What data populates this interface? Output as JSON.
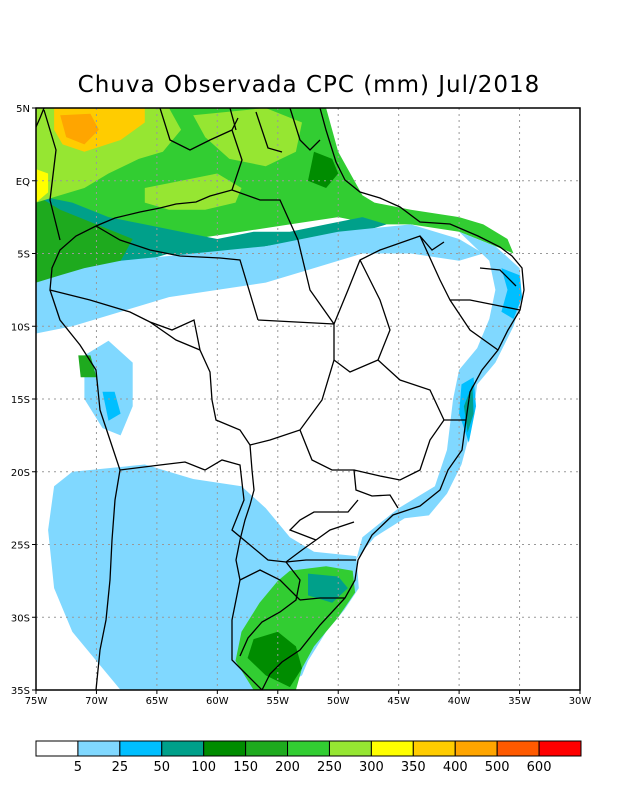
{
  "title": "Chuva Observada CPC (mm) Jul/2018",
  "lat_axis": {
    "range": [
      5,
      -35
    ],
    "ticks": [
      {
        "value": 5,
        "label": "5N"
      },
      {
        "value": 0,
        "label": "EQ"
      },
      {
        "value": -5,
        "label": "5S"
      },
      {
        "value": -10,
        "label": "10S"
      },
      {
        "value": -15,
        "label": "15S"
      },
      {
        "value": -20,
        "label": "20S"
      },
      {
        "value": -25,
        "label": "25S"
      },
      {
        "value": -30,
        "label": "30S"
      },
      {
        "value": -35,
        "label": "35S"
      }
    ]
  },
  "lon_axis": {
    "range": [
      -75,
      -30
    ],
    "ticks": [
      {
        "value": -75,
        "label": "75W"
      },
      {
        "value": -70,
        "label": "70W"
      },
      {
        "value": -65,
        "label": "65W"
      },
      {
        "value": -60,
        "label": "60W"
      },
      {
        "value": -55,
        "label": "55W"
      },
      {
        "value": -50,
        "label": "50W"
      },
      {
        "value": -45,
        "label": "45W"
      },
      {
        "value": -40,
        "label": "40W"
      },
      {
        "value": -35,
        "label": "35W"
      },
      {
        "value": -30,
        "label": "30W"
      }
    ]
  },
  "grid": true,
  "colorbar": {
    "colors": [
      "#ffffff",
      "#80d8ff",
      "#00bfff",
      "#00a08a",
      "#008c00",
      "#1eaa1e",
      "#32cd32",
      "#96e632",
      "#ffff00",
      "#ffcc00",
      "#ffa500",
      "#ff5a00",
      "#ff0000"
    ],
    "labels": [
      "5",
      "25",
      "50",
      "100",
      "150",
      "200",
      "250",
      "300",
      "350",
      "400",
      "500",
      "600"
    ]
  },
  "rain_regions": [
    {
      "name": "north-green-band",
      "level": 6,
      "pts": [
        [
          -75,
          5
        ],
        [
          -51,
          5
        ],
        [
          -50,
          2
        ],
        [
          -48,
          -1
        ],
        [
          -47,
          -1.5
        ],
        [
          -44,
          -2
        ],
        [
          -40,
          -2.5
        ],
        [
          -38,
          -3
        ],
        [
          -36,
          -4
        ],
        [
          -35.5,
          -5
        ],
        [
          -37,
          -4.5
        ],
        [
          -40,
          -3.5
        ],
        [
          -44,
          -3
        ],
        [
          -47,
          -3
        ],
        [
          -50,
          -2.5
        ],
        [
          -54,
          -3
        ],
        [
          -58,
          -3.5
        ],
        [
          -62,
          -4
        ],
        [
          -67,
          -5
        ],
        [
          -71,
          -6
        ],
        [
          -75,
          -6
        ]
      ]
    },
    {
      "name": "north-teal-band",
      "level": 3,
      "pts": [
        [
          -75,
          -1
        ],
        [
          -72,
          -1.5
        ],
        [
          -69,
          -2.5
        ],
        [
          -66,
          -3
        ],
        [
          -63,
          -3.5
        ],
        [
          -60,
          -4
        ],
        [
          -57,
          -3.5
        ],
        [
          -54,
          -3.5
        ],
        [
          -51,
          -3
        ],
        [
          -48,
          -2.5
        ],
        [
          -46,
          -3
        ],
        [
          -48,
          -3.5
        ],
        [
          -52,
          -4
        ],
        [
          -56,
          -4.5
        ],
        [
          -60,
          -5.5
        ],
        [
          -64,
          -5
        ],
        [
          -68,
          -6
        ],
        [
          -72,
          -7
        ],
        [
          -75,
          -7.5
        ]
      ]
    },
    {
      "name": "amazon-lightblue",
      "level": 1,
      "pts": [
        [
          -75,
          -5
        ],
        [
          -68,
          -5.5
        ],
        [
          -62,
          -5
        ],
        [
          -56,
          -4.5
        ],
        [
          -50,
          -3.5
        ],
        [
          -44,
          -3
        ],
        [
          -40,
          -4
        ],
        [
          -38,
          -5
        ],
        [
          -40,
          -5.5
        ],
        [
          -44,
          -5
        ],
        [
          -48,
          -5
        ],
        [
          -52,
          -6
        ],
        [
          -56,
          -7
        ],
        [
          -60,
          -7.5
        ],
        [
          -64,
          -8
        ],
        [
          -68,
          -9
        ],
        [
          -72,
          -10
        ],
        [
          -75,
          -10.5
        ]
      ]
    },
    {
      "name": "western-green-blob",
      "level": 5,
      "pts": [
        [
          -75,
          -1
        ],
        [
          -73,
          -2
        ],
        [
          -70,
          -3
        ],
        [
          -67,
          -4
        ],
        [
          -68,
          -5.5
        ],
        [
          -71,
          -6
        ],
        [
          -73,
          -6.5
        ],
        [
          -75,
          -7
        ]
      ]
    },
    {
      "name": "coast-east-blue",
      "level": 1,
      "pts": [
        [
          -40,
          -3.5
        ],
        [
          -37,
          -4.5
        ],
        [
          -35,
          -6
        ],
        [
          -34.8,
          -8
        ],
        [
          -35.5,
          -10
        ],
        [
          -37,
          -12.5
        ],
        [
          -38.5,
          -14
        ],
        [
          -39,
          -17
        ],
        [
          -39.8,
          -19.5
        ],
        [
          -41,
          -21.5
        ],
        [
          -42.5,
          -23
        ],
        [
          -44.5,
          -23.2
        ],
        [
          -47,
          -24.5
        ],
        [
          -48.5,
          -26
        ],
        [
          -48,
          -24.5
        ],
        [
          -45,
          -22.5
        ],
        [
          -42,
          -21
        ],
        [
          -41,
          -18.5
        ],
        [
          -40.5,
          -15
        ],
        [
          -40,
          -13
        ],
        [
          -38.5,
          -11.5
        ],
        [
          -37.5,
          -9.5
        ],
        [
          -37,
          -7.5
        ],
        [
          -37.5,
          -5.5
        ]
      ]
    },
    {
      "name": "coast-east-mid",
      "level": 2,
      "pts": [
        [
          -36.5,
          -6
        ],
        [
          -35,
          -6.5
        ],
        [
          -34.8,
          -8
        ],
        [
          -35.5,
          -9.5
        ],
        [
          -36.5,
          -9
        ],
        [
          -36,
          -7.5
        ]
      ]
    },
    {
      "name": "coast-ba-mid",
      "level": 2,
      "pts": [
        [
          -38.8,
          -13.5
        ],
        [
          -38.6,
          -15.5
        ],
        [
          -39.2,
          -18
        ],
        [
          -40,
          -16
        ],
        [
          -39.8,
          -14
        ]
      ]
    },
    {
      "name": "coast-ba-teal",
      "level": 3,
      "pts": [
        [
          -38.9,
          -14
        ],
        [
          -38.8,
          -16
        ],
        [
          -39.3,
          -17.3
        ],
        [
          -39.6,
          -15.5
        ]
      ]
    },
    {
      "name": "south-lightblue",
      "level": 1,
      "pts": [
        [
          -72,
          -20
        ],
        [
          -66,
          -19.5
        ],
        [
          -62,
          -20.5
        ],
        [
          -58,
          -21
        ],
        [
          -56,
          -22.5
        ],
        [
          -54,
          -24.5
        ],
        [
          -52,
          -25.5
        ],
        [
          -48.5,
          -25.8
        ],
        [
          -48.3,
          -28
        ],
        [
          -49.5,
          -29.5
        ],
        [
          -51,
          -31
        ],
        [
          -52.5,
          -33
        ],
        [
          -53,
          -34
        ],
        [
          -55,
          -35
        ],
        [
          -68,
          -35
        ],
        [
          -70,
          -33
        ],
        [
          -72,
          -31
        ],
        [
          -73.5,
          -28
        ],
        [
          -74,
          -24
        ],
        [
          -73.5,
          -21
        ]
      ]
    },
    {
      "name": "south-green",
      "level": 6,
      "pts": [
        [
          -54,
          -26.8
        ],
        [
          -51,
          -26.5
        ],
        [
          -48.8,
          -26.8
        ],
        [
          -48.6,
          -28.3
        ],
        [
          -50,
          -30
        ],
        [
          -51,
          -31
        ],
        [
          -52,
          -32
        ],
        [
          -53,
          -33.5
        ],
        [
          -53.5,
          -35
        ],
        [
          -57,
          -35
        ],
        [
          -58.5,
          -33
        ],
        [
          -58,
          -31
        ],
        [
          -56.5,
          -29
        ],
        [
          -55,
          -27.5
        ]
      ]
    },
    {
      "name": "south-darkgreen",
      "level": 4,
      "pts": [
        [
          -57,
          -31.5
        ],
        [
          -55,
          -31
        ],
        [
          -53.5,
          -32
        ],
        [
          -53,
          -33.5
        ],
        [
          -54,
          -34.8
        ],
        [
          -56,
          -34
        ],
        [
          -57.5,
          -32.8
        ]
      ]
    },
    {
      "name": "south-teal",
      "level": 3,
      "pts": [
        [
          -52.5,
          -27
        ],
        [
          -50,
          -27.2
        ],
        [
          -49.2,
          -28
        ],
        [
          -50.5,
          -29
        ],
        [
          -52.5,
          -28.5
        ]
      ]
    },
    {
      "name": "north-yellowgreen-guyana",
      "level": 7,
      "pts": [
        [
          -62,
          4.5
        ],
        [
          -56,
          5
        ],
        [
          -53,
          4
        ],
        [
          -53.5,
          2
        ],
        [
          -56,
          1
        ],
        [
          -59,
          1.5
        ],
        [
          -61,
          3
        ]
      ]
    },
    {
      "name": "north-yellowgreen-roraima",
      "level": 7,
      "pts": [
        [
          -66,
          -0.5
        ],
        [
          -63,
          0
        ],
        [
          -60,
          0.5
        ],
        [
          -58,
          -0.5
        ],
        [
          -58.5,
          -1.5
        ],
        [
          -61,
          -2
        ],
        [
          -64,
          -2
        ],
        [
          -66,
          -1.5
        ]
      ]
    },
    {
      "name": "north-yellowgreen-colombia",
      "level": 7,
      "pts": [
        [
          -75,
          5
        ],
        [
          -64,
          5
        ],
        [
          -63,
          3.5
        ],
        [
          -64.5,
          2
        ],
        [
          -66.5,
          1.5
        ],
        [
          -69,
          0.5
        ],
        [
          -71,
          -0.5
        ],
        [
          -73,
          -1
        ],
        [
          -75,
          -1.5
        ]
      ]
    },
    {
      "name": "north-yellow-west",
      "level": 8,
      "pts": [
        [
          -75,
          0.8
        ],
        [
          -74,
          0.5
        ],
        [
          -74,
          -0.8
        ],
        [
          -75,
          -1.5
        ]
      ]
    },
    {
      "name": "north-gold",
      "level": 9,
      "pts": [
        [
          -73.5,
          5
        ],
        [
          -66,
          5
        ],
        [
          -66,
          4
        ],
        [
          -68,
          2.8
        ],
        [
          -71,
          2
        ],
        [
          -72.8,
          2.5
        ],
        [
          -73.5,
          3.5
        ]
      ]
    },
    {
      "name": "north-orange",
      "level": 10,
      "pts": [
        [
          -73,
          4.5
        ],
        [
          -70.5,
          4.6
        ],
        [
          -69.8,
          3.5
        ],
        [
          -71,
          2.5
        ],
        [
          -72.5,
          3
        ]
      ]
    },
    {
      "name": "amazon-delta-green",
      "level": 4,
      "pts": [
        [
          -52,
          2
        ],
        [
          -50.5,
          1.5
        ],
        [
          -50,
          0.5
        ],
        [
          -51,
          -0.5
        ],
        [
          -52.5,
          0
        ]
      ]
    },
    {
      "name": "cerrado-lightblue-1",
      "level": 1,
      "pts": [
        [
          -71,
          -12
        ],
        [
          -69,
          -11
        ],
        [
          -67,
          -12.5
        ],
        [
          -67,
          -15.5
        ],
        [
          -68,
          -17.5
        ],
        [
          -69.5,
          -17
        ],
        [
          -71,
          -15
        ]
      ]
    },
    {
      "name": "cerrado-mid",
      "level": 2,
      "pts": [
        [
          -69.5,
          -14.5
        ],
        [
          -68.5,
          -14.5
        ],
        [
          -68,
          -16
        ],
        [
          -69,
          -16.5
        ]
      ]
    },
    {
      "name": "cerrado-green",
      "level": 5,
      "pts": [
        [
          -71.5,
          -12
        ],
        [
          -70.5,
          -12
        ],
        [
          -70,
          -13.5
        ],
        [
          -71.3,
          -13.5
        ]
      ]
    }
  ]
}
